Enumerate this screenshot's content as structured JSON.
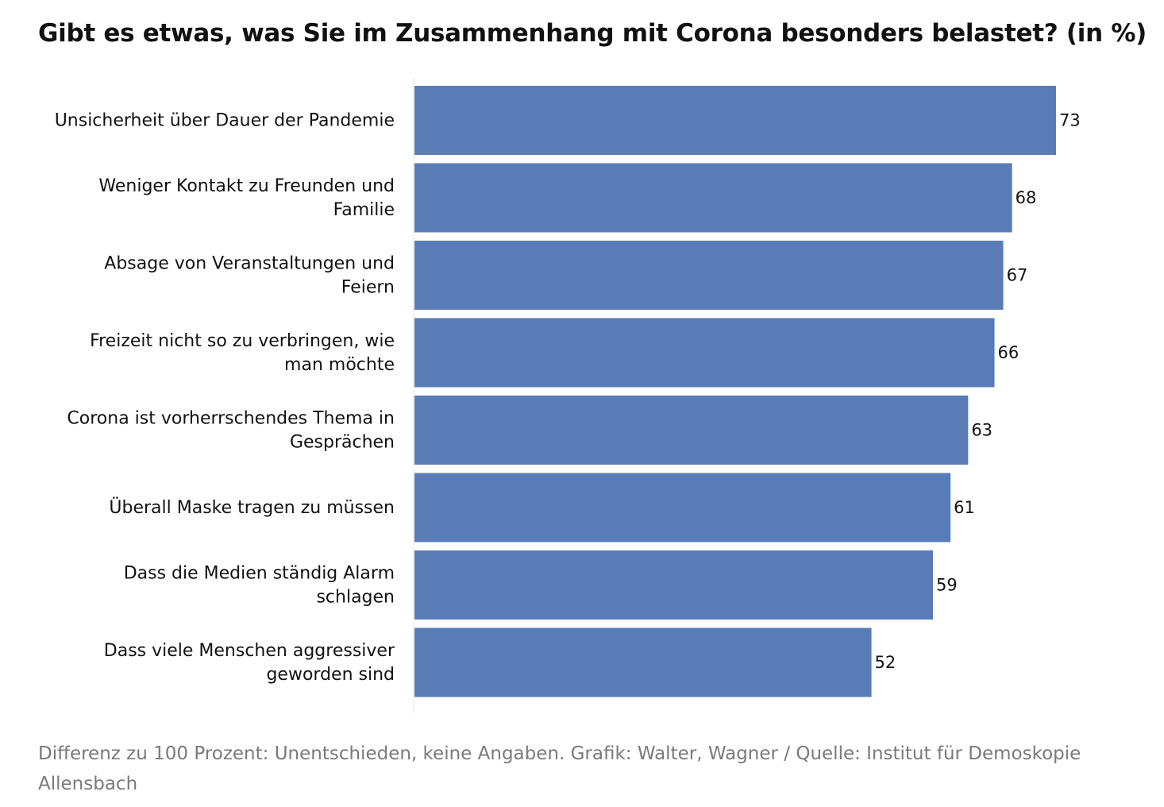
{
  "chart_data": {
    "type": "bar",
    "orientation": "horizontal",
    "title": "Gibt es etwas, was Sie im Zusammenhang mit Corona besonders belastet? (in %)",
    "categories": [
      [
        "Unsicherheit über Dauer der Pandemie"
      ],
      [
        "Weniger Kontakt zu Freunden und",
        "Familie"
      ],
      [
        "Absage von Veranstaltungen und",
        "Feiern"
      ],
      [
        "Freizeit nicht so zu verbringen, wie",
        "man möchte"
      ],
      [
        "Corona ist vorherrschendes Thema in",
        "Gesprächen"
      ],
      [
        "Überall Maske tragen zu müssen"
      ],
      [
        "Dass die Medien ständig Alarm",
        "schlagen"
      ],
      [
        "Dass viele Menschen aggressiver",
        "geworden sind"
      ]
    ],
    "values": [
      73,
      68,
      67,
      66,
      63,
      61,
      59,
      52
    ],
    "xlim": [
      0,
      73
    ],
    "bar_color": "#5a7cb6",
    "grid": false,
    "legend": "none"
  },
  "footnote": "Differenz zu 100 Prozent: Unentschieden, keine Angaben. Grafik: Walter, Wagner / Quelle: Institut für Demoskopie Allensbach"
}
